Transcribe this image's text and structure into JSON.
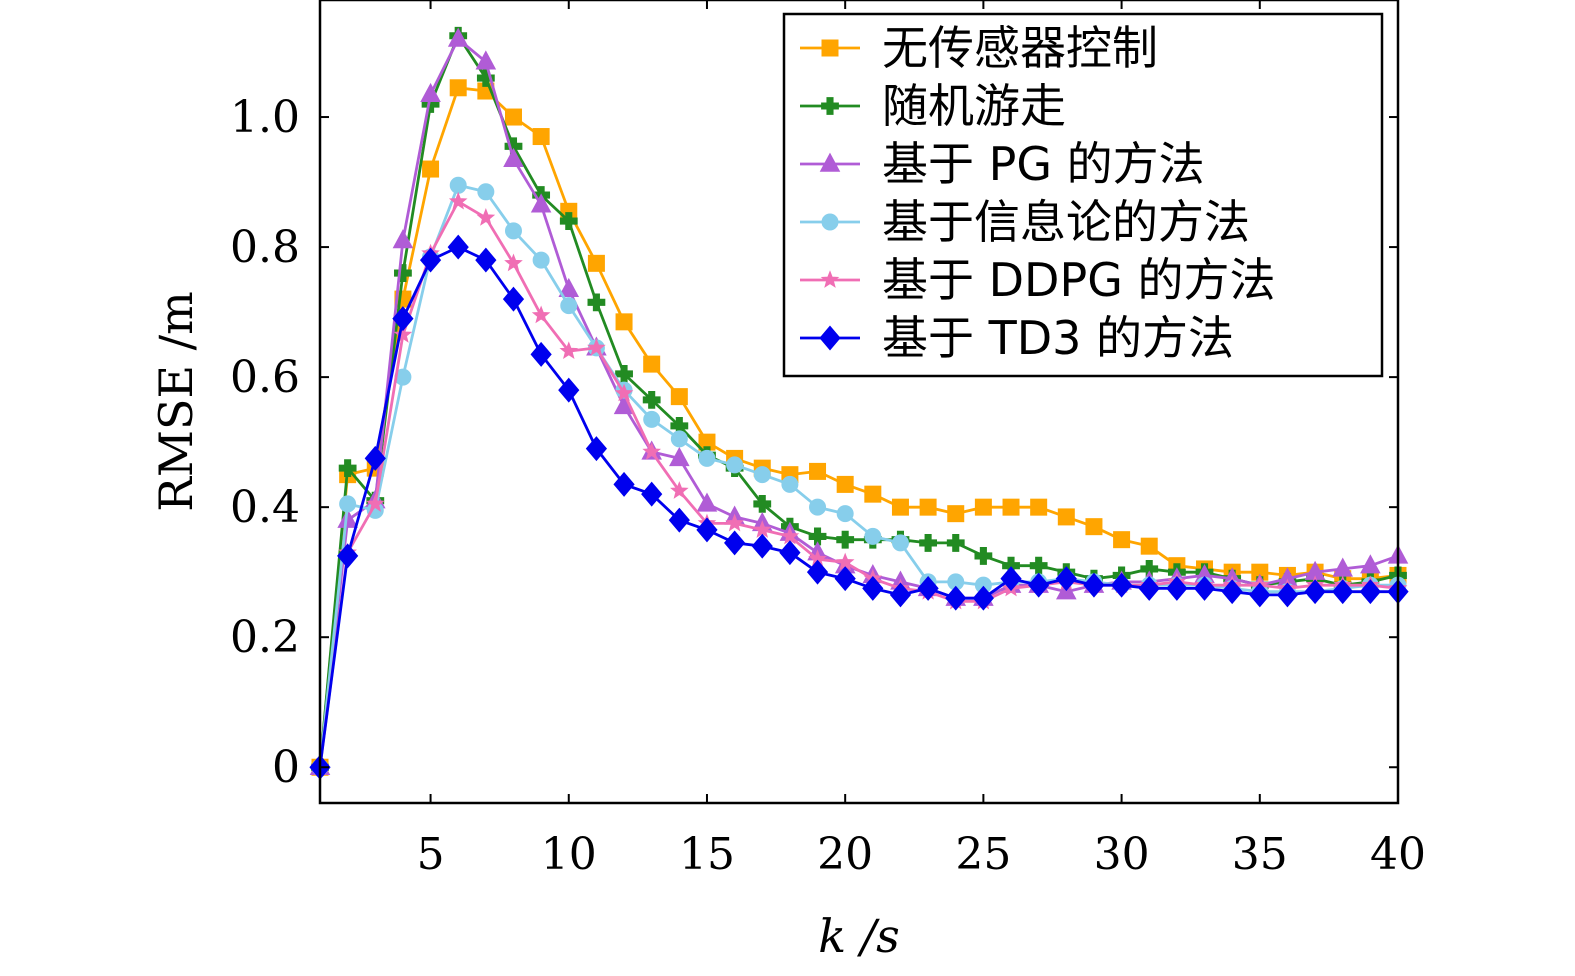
{
  "chart_data": {
    "type": "line",
    "xlabel": "k /s",
    "ylabel": "RMSE /m",
    "xlim": [
      1,
      40
    ],
    "ylim": [
      -0.055,
      1.18
    ],
    "grid": false,
    "legend_position": "top-right",
    "x_ticks": [
      5,
      10,
      15,
      20,
      25,
      30,
      35,
      40
    ],
    "x_tick_labels": [
      "5",
      "10",
      "15",
      "20",
      "25",
      "30",
      "35",
      "40"
    ],
    "y_ticks": [
      0,
      0.2,
      0.4,
      0.6,
      0.8,
      1.0
    ],
    "y_tick_labels": [
      "0",
      "0.2",
      "0.4",
      "0.6",
      "0.8",
      "1.0"
    ],
    "x": [
      1,
      2,
      3,
      4,
      5,
      6,
      7,
      8,
      9,
      10,
      11,
      12,
      13,
      14,
      15,
      16,
      17,
      18,
      19,
      20,
      21,
      22,
      23,
      24,
      25,
      26,
      27,
      28,
      29,
      30,
      31,
      32,
      33,
      34,
      35,
      36,
      37,
      38,
      39,
      40
    ],
    "series": [
      {
        "name": "无传感器控制",
        "color": "#FFA500",
        "marker": "square",
        "values": [
          0,
          0.45,
          0.46,
          0.72,
          0.92,
          1.045,
          1.04,
          1.0,
          0.97,
          0.855,
          0.775,
          0.685,
          0.62,
          0.57,
          0.5,
          0.475,
          0.46,
          0.45,
          0.455,
          0.435,
          0.42,
          0.4,
          0.4,
          0.39,
          0.4,
          0.4,
          0.4,
          0.385,
          0.37,
          0.35,
          0.34,
          0.31,
          0.305,
          0.3,
          0.3,
          0.295,
          0.3,
          0.29,
          0.29,
          0.295
        ]
      },
      {
        "name": "随机游走",
        "color": "#228B22",
        "marker": "plus",
        "values": [
          0,
          0.46,
          0.41,
          0.76,
          1.02,
          1.125,
          1.06,
          0.955,
          0.88,
          0.84,
          0.715,
          0.605,
          0.565,
          0.525,
          0.48,
          0.46,
          0.405,
          0.37,
          0.355,
          0.35,
          0.35,
          0.35,
          0.345,
          0.345,
          0.325,
          0.31,
          0.31,
          0.3,
          0.29,
          0.295,
          0.305,
          0.3,
          0.3,
          0.29,
          0.28,
          0.285,
          0.29,
          0.28,
          0.285,
          0.295
        ]
      },
      {
        "name": "基于 PG 的方法",
        "color": "#B05CD6",
        "marker": "triangle",
        "values": [
          0,
          0.38,
          0.41,
          0.81,
          1.035,
          1.12,
          1.085,
          0.935,
          0.865,
          0.735,
          0.645,
          0.555,
          0.485,
          0.475,
          0.405,
          0.385,
          0.375,
          0.36,
          0.33,
          0.31,
          0.295,
          0.285,
          0.275,
          0.26,
          0.26,
          0.28,
          0.28,
          0.27,
          0.28,
          0.285,
          0.285,
          0.29,
          0.295,
          0.29,
          0.28,
          0.29,
          0.3,
          0.305,
          0.31,
          0.325
        ]
      },
      {
        "name": "基于信息论的方法",
        "color": "#87CEEB",
        "marker": "circle",
        "values": [
          0,
          0.405,
          0.395,
          0.6,
          0.785,
          0.895,
          0.885,
          0.825,
          0.78,
          0.71,
          0.645,
          0.58,
          0.535,
          0.505,
          0.475,
          0.465,
          0.45,
          0.435,
          0.4,
          0.39,
          0.355,
          0.345,
          0.285,
          0.285,
          0.28,
          0.285,
          0.285,
          0.29,
          0.285,
          0.28,
          0.28,
          0.28,
          0.28,
          0.275,
          0.27,
          0.27,
          0.27,
          0.275,
          0.28,
          0.28
        ]
      },
      {
        "name": "基于 DDPG 的方法",
        "color": "#F06EB4",
        "marker": "star",
        "values": [
          0,
          0.33,
          0.405,
          0.665,
          0.79,
          0.87,
          0.845,
          0.775,
          0.695,
          0.64,
          0.645,
          0.575,
          0.485,
          0.425,
          0.375,
          0.375,
          0.365,
          0.355,
          0.32,
          0.315,
          0.29,
          0.275,
          0.27,
          0.255,
          0.255,
          0.275,
          0.28,
          0.285,
          0.28,
          0.28,
          0.28,
          0.285,
          0.28,
          0.28,
          0.28,
          0.275,
          0.28,
          0.28,
          0.28,
          0.275
        ]
      },
      {
        "name": "基于 TD3 的方法",
        "color": "#0000EE",
        "marker": "diamond",
        "values": [
          0,
          0.325,
          0.475,
          0.69,
          0.78,
          0.8,
          0.78,
          0.72,
          0.635,
          0.58,
          0.49,
          0.435,
          0.42,
          0.38,
          0.365,
          0.345,
          0.34,
          0.33,
          0.3,
          0.29,
          0.275,
          0.265,
          0.275,
          0.26,
          0.26,
          0.29,
          0.28,
          0.29,
          0.28,
          0.28,
          0.275,
          0.275,
          0.275,
          0.27,
          0.265,
          0.265,
          0.27,
          0.27,
          0.27,
          0.27
        ]
      }
    ]
  }
}
